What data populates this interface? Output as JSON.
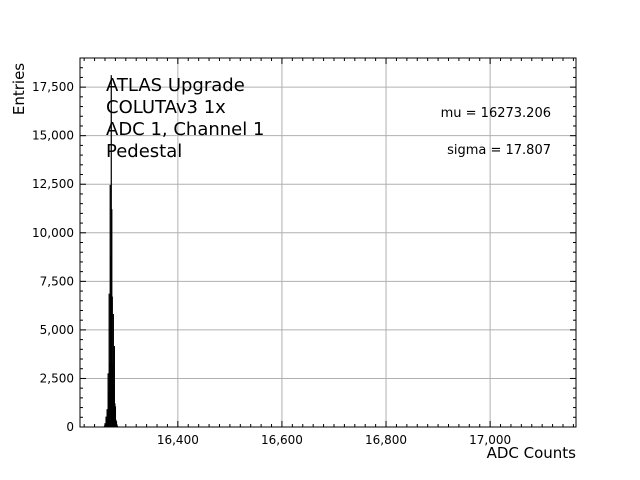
{
  "chart_data": {
    "type": "histogram",
    "xlabel": "ADC Counts",
    "ylabel": "Entries",
    "xlim": [
      16212,
      17165
    ],
    "ylim": [
      0,
      19000
    ],
    "xticks": [
      16400,
      16600,
      16800,
      17000
    ],
    "xtick_labels": [
      "16,400",
      "16,600",
      "16,800",
      "17,000"
    ],
    "yticks": [
      0,
      2500,
      5000,
      7500,
      10000,
      12500,
      15000,
      17500
    ],
    "ytick_labels": [
      "0",
      "2,500",
      "5,000",
      "7,500",
      "10,000",
      "12,500",
      "15,000",
      "17,500"
    ],
    "grid": true,
    "annotations": [
      "ATLAS Upgrade",
      "COLUTAv3 1x",
      "ADC 1, Channel 1",
      "Pedestal"
    ],
    "stats": [
      "mu = 16273.206",
      "sigma = 17.807"
    ],
    "bins": [
      {
        "x": 16259,
        "y": 60
      },
      {
        "x": 16260,
        "y": 180
      },
      {
        "x": 16261,
        "y": 130
      },
      {
        "x": 16262,
        "y": 520
      },
      {
        "x": 16263,
        "y": 300
      },
      {
        "x": 16264,
        "y": 900
      },
      {
        "x": 16265,
        "y": 640
      },
      {
        "x": 16266,
        "y": 2750
      },
      {
        "x": 16267,
        "y": 1750
      },
      {
        "x": 16268,
        "y": 6850
      },
      {
        "x": 16269,
        "y": 3300
      },
      {
        "x": 16270,
        "y": 12450
      },
      {
        "x": 16271,
        "y": 8800
      },
      {
        "x": 16272,
        "y": 18100
      },
      {
        "x": 16273,
        "y": 11200
      },
      {
        "x": 16274,
        "y": 6700
      },
      {
        "x": 16275,
        "y": 3200
      },
      {
        "x": 16276,
        "y": 5800
      },
      {
        "x": 16277,
        "y": 2200
      },
      {
        "x": 16278,
        "y": 4150
      },
      {
        "x": 16279,
        "y": 1200
      },
      {
        "x": 16280,
        "y": 1050
      },
      {
        "x": 16281,
        "y": 350
      },
      {
        "x": 16282,
        "y": 280
      },
      {
        "x": 16283,
        "y": 120
      },
      {
        "x": 16284,
        "y": 40
      }
    ],
    "bar_color": "#000000",
    "grid_color": "#b0b0b0"
  }
}
